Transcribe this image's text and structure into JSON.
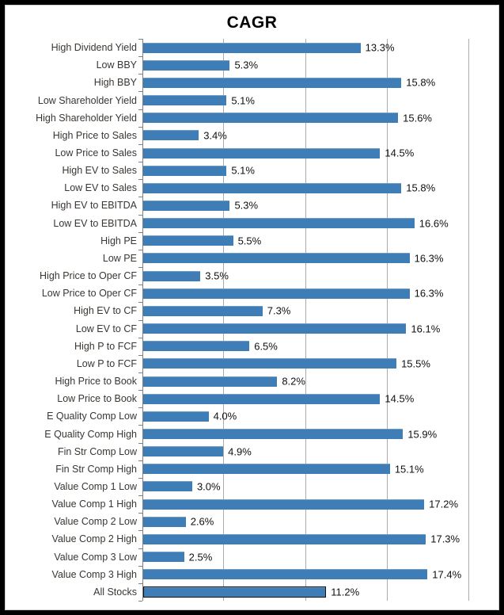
{
  "chart_data": {
    "type": "bar",
    "orientation": "horizontal",
    "title": "CAGR",
    "categories": [
      "High Dividend Yield",
      "Low BBY",
      "High BBY",
      "Low Shareholder Yield",
      "High Shareholder Yield",
      "High Price to Sales",
      "Low Price to Sales",
      "High EV to Sales",
      "Low EV to Sales",
      "High EV to EBITDA",
      "Low EV to EBITDA",
      "High PE",
      "Low PE",
      "High Price to Oper CF",
      "Low Price to Oper CF",
      "High EV to CF",
      "Low EV to CF",
      "High P to FCF",
      "Low P to FCF",
      "High Price to Book",
      "Low Price to Book",
      "E Quality Comp Low",
      "E Quality Comp High",
      "Fin Str Comp Low",
      "Fin Str Comp High",
      "Value Comp 1 Low",
      "Value Comp 1 High",
      "Value Comp 2 Low",
      "Value Comp 2 High",
      "Value Comp 3 Low",
      "Value Comp 3 High",
      "All Stocks"
    ],
    "values": [
      13.3,
      5.3,
      15.8,
      5.1,
      15.6,
      3.4,
      14.5,
      5.1,
      15.8,
      5.3,
      16.6,
      5.5,
      16.3,
      3.5,
      16.3,
      7.3,
      16.1,
      6.5,
      15.5,
      8.2,
      14.5,
      4.0,
      15.9,
      4.9,
      15.1,
      3.0,
      17.2,
      2.6,
      17.3,
      2.5,
      17.4,
      11.2
    ],
    "data_labels": [
      "13.3%",
      "5.3%",
      "15.8%",
      "5.1%",
      "15.6%",
      "3.4%",
      "14.5%",
      "5.1%",
      "15.8%",
      "5.3%",
      "16.6%",
      "5.5%",
      "16.3%",
      "3.5%",
      "16.3%",
      "7.3%",
      "16.1%",
      "6.5%",
      "15.5%",
      "8.2%",
      "14.5%",
      "4.0%",
      "15.9%",
      "4.9%",
      "15.1%",
      "3.0%",
      "17.2%",
      "2.6%",
      "17.3%",
      "2.5%",
      "17.4%",
      "11.2%"
    ],
    "xlabel": "",
    "ylabel": "",
    "xlim": [
      0,
      20
    ],
    "gridlines_pct": [
      5,
      10,
      15,
      20
    ],
    "grid": "vertical-only",
    "legend": "none",
    "highlight_category": "All Stocks",
    "bar_color": "#3e7db6",
    "highlight_border_color": "#111111",
    "gridline_color": "#ababab",
    "axis_color": "#7f7f7f",
    "title_color": "#000000",
    "label_color": "#3a3632"
  }
}
